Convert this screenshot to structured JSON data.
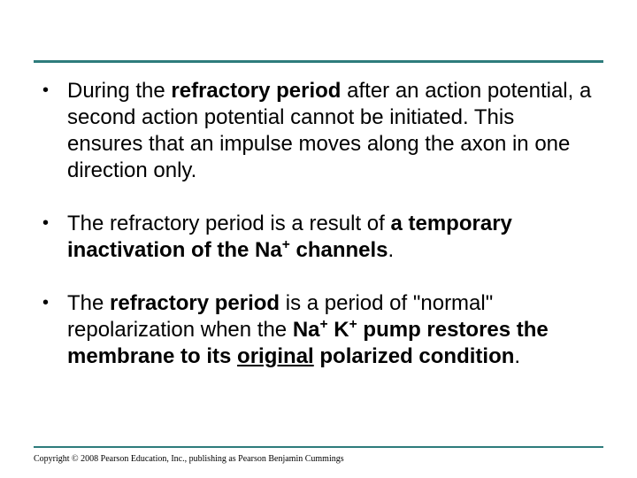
{
  "slide": {
    "rule_color": "#2e7c7c",
    "bg_color": "#ffffff",
    "text_color": "#000000",
    "body_fontsize": 24,
    "copyright_fontsize": 10,
    "bullets": [
      {
        "pre": "During the ",
        "b1": "refractory period",
        "post1": " after an action potential, a second action potential cannot be initiated. This ensures that an impulse moves along the axon in one direction only."
      },
      {
        "pre": "The refractory period is a result of ",
        "b1": "a temporary inactivation of the Na",
        "sup1": "+",
        "b1_tail": " channels",
        "post1": "."
      },
      {
        "pre": "The ",
        "b1": "refractory period ",
        "mid": " is a period of \"normal\" repolarization when the ",
        "b2": "Na",
        "sup2a": "+",
        "b2_mid": " K",
        "sup2b": "+",
        "b2_tail": " pump restores the membrane to its ",
        "u1": "original",
        "b3": " polarized condition",
        "post1": "."
      }
    ],
    "copyright": "Copyright © 2008 Pearson Education, Inc., publishing as Pearson Benjamin Cummings"
  }
}
